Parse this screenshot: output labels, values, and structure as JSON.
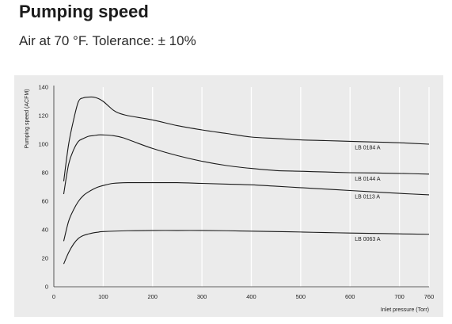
{
  "page": {
    "title": "Pumping speed",
    "subtitle": "Air at 70 °F. Tolerance: ± 10%"
  },
  "chart_data": {
    "type": "line",
    "xlabel": "Inlet pressure (Torr)",
    "ylabel": "Pumping speed (ACFM)",
    "xlim": [
      0,
      760
    ],
    "ylim": [
      0,
      140
    ],
    "xticks": [
      0,
      100,
      200,
      300,
      400,
      500,
      600,
      700,
      760
    ],
    "yticks": [
      0,
      20,
      40,
      60,
      80,
      100,
      120,
      140
    ],
    "grid": "vertical",
    "line_color": "#1a1a1a",
    "series": [
      {
        "name": "LB 0184 A",
        "x": [
          20,
          30,
          40,
          50,
          60,
          70,
          80,
          90,
          100,
          110,
          120,
          130,
          150,
          200,
          250,
          300,
          350,
          400,
          450,
          500,
          550,
          600,
          650,
          700,
          760
        ],
        "y": [
          74,
          100,
          117,
          130,
          132.5,
          133,
          133,
          132,
          130,
          127,
          124,
          122,
          120,
          117,
          113,
          110,
          107.5,
          105,
          104,
          103,
          102.5,
          102,
          101.5,
          101,
          100
        ]
      },
      {
        "name": "LB 0144 A",
        "x": [
          20,
          30,
          40,
          50,
          60,
          70,
          80,
          90,
          100,
          120,
          140,
          160,
          200,
          250,
          300,
          350,
          400,
          450,
          500,
          550,
          600,
          650,
          700,
          760
        ],
        "y": [
          65,
          86,
          96,
          102,
          104,
          105.5,
          106,
          106.5,
          106.5,
          106,
          104.5,
          102,
          97,
          92,
          88,
          85,
          83,
          81.5,
          81,
          80.5,
          80,
          79.8,
          79.5,
          79
        ]
      },
      {
        "name": "LB 0113 A",
        "x": [
          20,
          30,
          40,
          50,
          60,
          70,
          80,
          90,
          100,
          120,
          150,
          200,
          250,
          300,
          350,
          400,
          450,
          500,
          550,
          600,
          650,
          700,
          760
        ],
        "y": [
          32,
          46,
          54,
          60,
          64,
          66.5,
          68.5,
          70,
          71,
          72.5,
          73,
          73,
          73,
          72.5,
          72,
          71.5,
          70.5,
          69.5,
          68.5,
          67.5,
          66.5,
          65.5,
          64.5
        ]
      },
      {
        "name": "LB 0063 A",
        "x": [
          20,
          30,
          40,
          50,
          60,
          70,
          80,
          90,
          100,
          150,
          200,
          250,
          300,
          350,
          400,
          450,
          500,
          550,
          600,
          650,
          700,
          760
        ],
        "y": [
          16,
          24,
          30,
          34,
          36,
          37,
          37.8,
          38.3,
          38.7,
          39.3,
          39.5,
          39.5,
          39.5,
          39.3,
          39,
          38.7,
          38.4,
          38,
          37.7,
          37.4,
          37.1,
          36.8
        ]
      }
    ]
  }
}
